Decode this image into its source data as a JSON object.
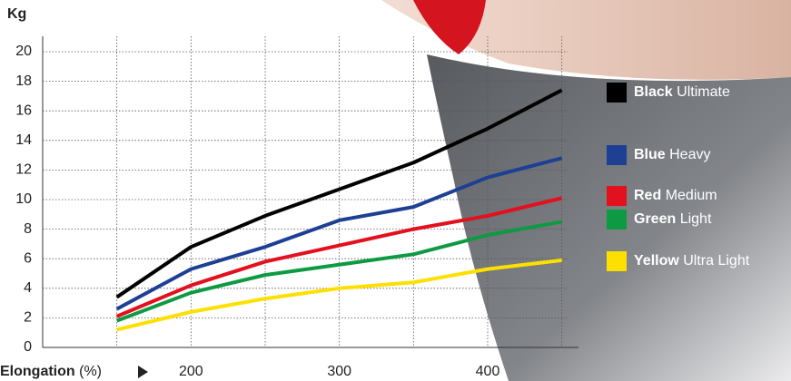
{
  "chart_data": {
    "type": "line",
    "ylabel": "Kg",
    "xlabel": "Elongation",
    "xlabel_unit": "(%)",
    "x": [
      150,
      200,
      250,
      300,
      350,
      400,
      450
    ],
    "series": [
      {
        "name": "Black",
        "grade": "Ultimate",
        "color": "#000000",
        "values": [
          3.4,
          6.8,
          8.9,
          10.7,
          12.5,
          14.8,
          17.4
        ]
      },
      {
        "name": "Blue",
        "grade": "Heavy",
        "color": "#1d3f94",
        "values": [
          2.6,
          5.3,
          6.8,
          8.6,
          9.5,
          11.5,
          12.8
        ]
      },
      {
        "name": "Red",
        "grade": "Medium",
        "color": "#e3101e",
        "values": [
          2.1,
          4.2,
          5.8,
          6.9,
          8.0,
          8.9,
          10.1
        ]
      },
      {
        "name": "Green",
        "grade": "Light",
        "color": "#0e9a43",
        "values": [
          1.8,
          3.7,
          4.9,
          5.6,
          6.3,
          7.6,
          8.5
        ]
      },
      {
        "name": "Yellow",
        "grade": "Ultra Light",
        "color": "#fde000",
        "values": [
          1.2,
          2.4,
          3.3,
          4.0,
          4.4,
          5.3,
          5.9
        ]
      }
    ],
    "xlim": [
      100,
      460
    ],
    "xticks": [
      200,
      300,
      400
    ],
    "xminor_ticks": [
      150,
      250,
      350,
      450
    ],
    "ylim": [
      0,
      20
    ],
    "yticks": [
      0,
      2,
      4,
      6,
      8,
      10,
      12,
      14,
      16,
      18,
      20
    ],
    "grid": true
  }
}
